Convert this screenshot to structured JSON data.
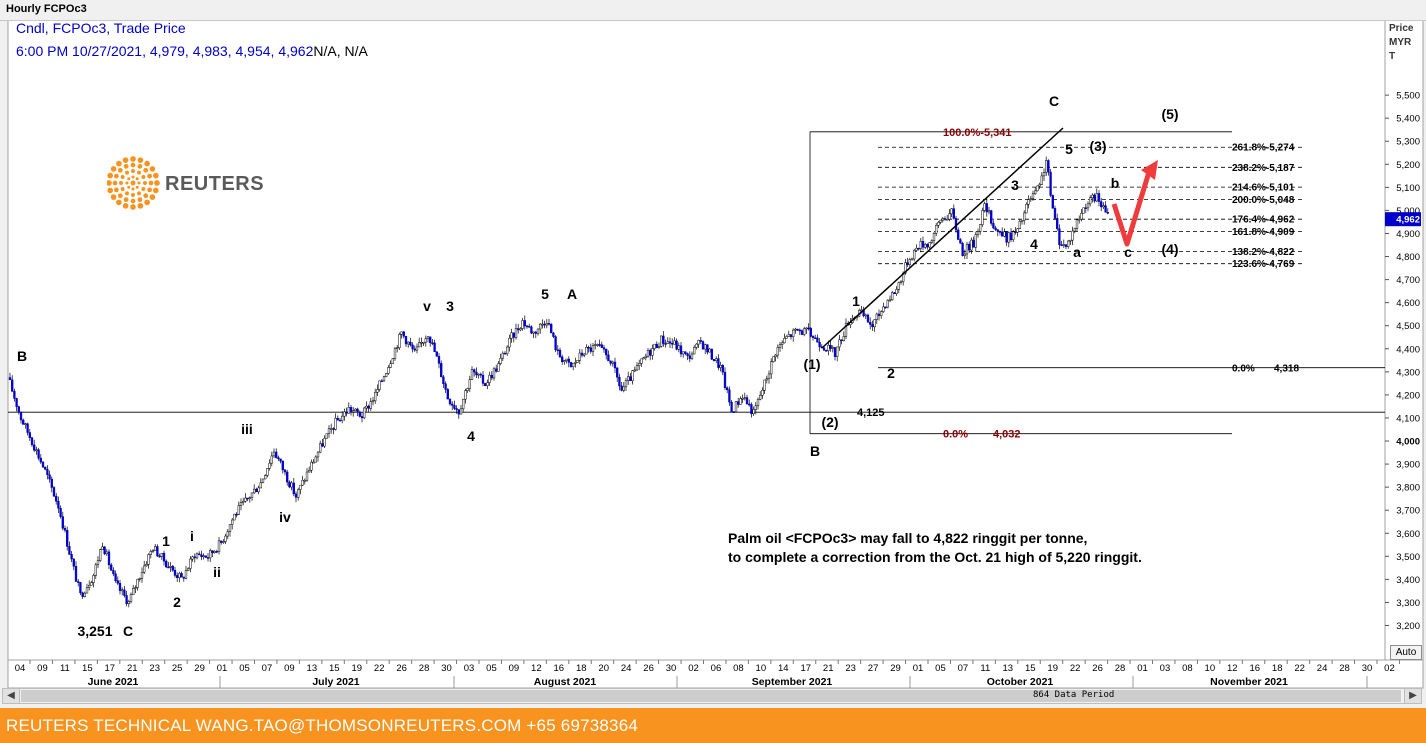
{
  "window": {
    "title": "Hourly FCPOc3"
  },
  "info": {
    "line1": "Cndl, FCPOc3, Trade Price",
    "line2_values": "6:00 PM 10/27/2021, 4,979, 4,983, 4,954, 4,962",
    "line2_suffix": "N/A, N/A"
  },
  "axis": {
    "price_title_1": "Price",
    "price_title_2": "MYR",
    "price_title_3": "T",
    "auto_label": "Auto"
  },
  "scrollbar": {
    "period_label": "864 Data Period",
    "left_arrow": "◀",
    "right_arrow": "▶"
  },
  "footer": {
    "text": "REUTERS TECHNICAL  WANG.TAO@THOMSONREUTERS.COM  +65 69738364"
  },
  "logo": {
    "text": "REUTERS"
  },
  "colors": {
    "candle_up": "#ffffff",
    "candle_down": "#0000cc",
    "fib_red": "#8b0000",
    "arrow": "#ef3b3b",
    "current_price_bg": "#0000cc"
  },
  "chart_data": {
    "type": "candlestick",
    "instrument": "FCPOc3",
    "unit": "MYR/T",
    "ylim": [
      3100,
      5520
    ],
    "y_ticks": [
      3200,
      3300,
      3400,
      3500,
      3600,
      3700,
      3800,
      3900,
      4000,
      4100,
      4200,
      4300,
      4400,
      4500,
      4600,
      4700,
      4800,
      4900,
      5000,
      5100,
      5200,
      5300,
      5400,
      5500
    ],
    "current_price": 4962,
    "current_price_label": "4,962",
    "x_ticks": [
      "04",
      "09",
      "11",
      "15",
      "17",
      "21",
      "23",
      "25",
      "29",
      "01",
      "05",
      "07",
      "09",
      "13",
      "15",
      "19",
      "22",
      "26",
      "28",
      "30",
      "03",
      "05",
      "09",
      "12",
      "16",
      "18",
      "20",
      "24",
      "26",
      "30",
      "02",
      "06",
      "08",
      "10",
      "14",
      "17",
      "21",
      "23",
      "27",
      "29",
      "01",
      "05",
      "07",
      "11",
      "13",
      "15",
      "19",
      "22",
      "26",
      "28",
      "01",
      "03",
      "08",
      "10",
      "12",
      "16",
      "18",
      "22",
      "24",
      "28",
      "30",
      "02"
    ],
    "months": [
      "June 2021",
      "July 2021",
      "August 2021",
      "September 2021",
      "October 2021",
      "November 2021"
    ],
    "path": [
      [
        0,
        4250
      ],
      [
        0.5,
        4100
      ],
      [
        1,
        4000
      ],
      [
        1.6,
        3870
      ],
      [
        2.2,
        3720
      ],
      [
        2.7,
        3520
      ],
      [
        3.2,
        3330
      ],
      [
        3.8,
        3420
      ],
      [
        4.2,
        3560
      ],
      [
        4.8,
        3380
      ],
      [
        5.4,
        3300
      ],
      [
        5.9,
        3420
      ],
      [
        6.5,
        3540
      ],
      [
        7.2,
        3460
      ],
      [
        7.8,
        3400
      ],
      [
        8.4,
        3510
      ],
      [
        9,
        3500
      ],
      [
        9.6,
        3560
      ],
      [
        10.2,
        3680
      ],
      [
        10.8,
        3750
      ],
      [
        11.4,
        3820
      ],
      [
        12,
        3960
      ],
      [
        12.5,
        3860
      ],
      [
        13,
        3760
      ],
      [
        13.6,
        3880
      ],
      [
        14.2,
        3990
      ],
      [
        14.8,
        4080
      ],
      [
        15.4,
        4140
      ],
      [
        16,
        4110
      ],
      [
        16.6,
        4200
      ],
      [
        17.2,
        4330
      ],
      [
        17.8,
        4470
      ],
      [
        18.4,
        4380
      ],
      [
        19,
        4470
      ],
      [
        19.4,
        4360
      ],
      [
        19.9,
        4190
      ],
      [
        20.4,
        4130
      ],
      [
        21,
        4300
      ],
      [
        21.6,
        4250
      ],
      [
        22.2,
        4330
      ],
      [
        22.8,
        4450
      ],
      [
        23.3,
        4520
      ],
      [
        23.8,
        4470
      ],
      [
        24.4,
        4530
      ],
      [
        24.9,
        4380
      ],
      [
        25.5,
        4320
      ],
      [
        26.1,
        4390
      ],
      [
        26.7,
        4410
      ],
      [
        27.3,
        4350
      ],
      [
        27.8,
        4220
      ],
      [
        28.4,
        4300
      ],
      [
        29,
        4380
      ],
      [
        29.6,
        4440
      ],
      [
        30.2,
        4420
      ],
      [
        30.8,
        4360
      ],
      [
        31.4,
        4430
      ],
      [
        31.9,
        4370
      ],
      [
        32.3,
        4320
      ],
      [
        32.8,
        4130
      ],
      [
        33.3,
        4200
      ],
      [
        33.8,
        4120
      ],
      [
        34.3,
        4250
      ],
      [
        34.8,
        4390
      ],
      [
        35.3,
        4450
      ],
      [
        35.8,
        4480
      ],
      [
        36.3,
        4470
      ],
      [
        36.9,
        4420
      ],
      [
        37.5,
        4380
      ],
      [
        38.1,
        4520
      ],
      [
        38.6,
        4560
      ],
      [
        39.2,
        4500
      ],
      [
        39.8,
        4600
      ],
      [
        40.3,
        4660
      ],
      [
        40.8,
        4780
      ],
      [
        41.3,
        4850
      ],
      [
        41.8,
        4860
      ],
      [
        42.3,
        4960
      ],
      [
        42.8,
        4990
      ],
      [
        43.3,
        4820
      ],
      [
        43.8,
        4860
      ],
      [
        44.3,
        5020
      ],
      [
        44.8,
        4920
      ],
      [
        45.3,
        4880
      ],
      [
        45.8,
        4910
      ],
      [
        46.3,
        5040
      ],
      [
        46.8,
        5100
      ],
      [
        47.1,
        5220
      ],
      [
        47.4,
        5000
      ],
      [
        47.7,
        4870
      ],
      [
        48,
        4840
      ],
      [
        48.4,
        4930
      ],
      [
        48.9,
        5030
      ],
      [
        49.4,
        5060
      ],
      [
        49.8,
        4990
      ],
      [
        50,
        4962
      ]
    ],
    "fib_levels": [
      {
        "label": "261.8%-5,274",
        "value": 5274
      },
      {
        "label": "238.2%-5,187",
        "value": 5187
      },
      {
        "label": "214.6%-5,101",
        "value": 5101
      },
      {
        "label": "200.0%-5,048",
        "value": 5048
      },
      {
        "label": "176.4%-4,962",
        "value": 4962
      },
      {
        "label": "161.8%-4,909",
        "value": 4909
      },
      {
        "label": "138.2%-4,822",
        "value": 4822
      },
      {
        "label": "123.6%-4,769",
        "value": 4769
      }
    ],
    "fib_zero": {
      "pct": "0.0%",
      "value": "4,318",
      "price": 4318
    },
    "red_fib_top": {
      "label": "100.0%-5,341",
      "price": 5341
    },
    "red_fib_bottom": {
      "pct": "0.0%",
      "value": "4,032",
      "price": 4032
    },
    "support_label": "4,125",
    "support_price": 4125,
    "wave_labels": [
      "B",
      "3,251",
      "C",
      "1",
      "2",
      "i",
      "ii",
      "iii",
      "iv",
      "v",
      "3",
      "4",
      "5",
      "A",
      "(1)",
      "(2)",
      "B",
      "1",
      "2",
      "3",
      "4",
      "5",
      "(3)",
      "a",
      "b",
      "c",
      "(4)",
      "(5)",
      "C"
    ],
    "annotation_line1": "Palm oil <FCPOc3> may fall to 4,822 ringgit per tonne,",
    "annotation_line2": "to complete a correction from the Oct. 21 high of 5,220 ringgit."
  }
}
